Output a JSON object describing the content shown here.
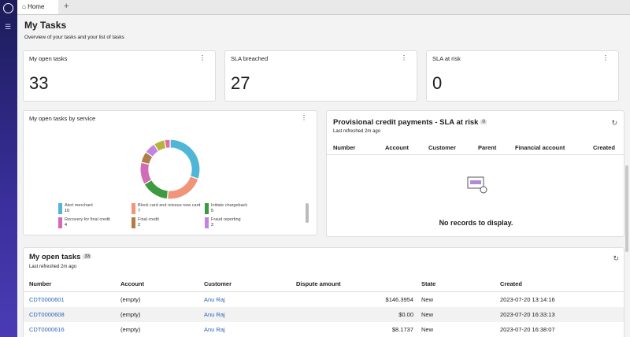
{
  "tab": {
    "label": "Home"
  },
  "header": {
    "title": "My Tasks",
    "subtitle": "Overview of your tasks and your list of tasks"
  },
  "stats": [
    {
      "label": "My open tasks",
      "value": 33
    },
    {
      "label": "SLA breached",
      "value": 27
    },
    {
      "label": "SLA at risk",
      "value": 0
    }
  ],
  "service_chart": {
    "type": "donut",
    "title": "My open tasks by service",
    "items": [
      {
        "label": "Alert merchant",
        "value": 10,
        "color": "#4fb6d8"
      },
      {
        "label": "Block card and reissue new card",
        "value": 7,
        "color": "#f0957a"
      },
      {
        "label": "Initiate chargeback",
        "value": 5,
        "color": "#3f9a3f"
      },
      {
        "label": "Recovery for final credit",
        "value": 4,
        "color": "#d16bb5"
      },
      {
        "label": "Final credit",
        "value": 2,
        "color": "#b07d46"
      },
      {
        "label": "Fraud reporting",
        "value": 2,
        "color": "#c184e0"
      },
      {
        "label": null,
        "value": 2,
        "color": "#b6b43a"
      },
      {
        "label": null,
        "value": 1,
        "color": "#e56aa0"
      }
    ]
  },
  "provisional": {
    "title": "Provisional credit payments - SLA at risk",
    "count": 0,
    "refreshed": "Last refreshed 2m ago",
    "columns": [
      "Number",
      "Account",
      "Customer",
      "Parent",
      "Financial account",
      "Created"
    ],
    "empty": "No records to display."
  },
  "tasks": {
    "title": "My open tasks",
    "count": 33,
    "refreshed": "Last refreshed 2m ago",
    "columns": [
      "Number",
      "Account",
      "Customer",
      "Dispute amount",
      "State",
      "Created"
    ],
    "rows": [
      [
        "CDT0000601",
        "(empty)",
        "Anu Raj",
        "$146.3954",
        "New",
        "2023-07-20 13:14:16"
      ],
      [
        "CDT0000608",
        "(empty)",
        "Anu Raj",
        "$0.00",
        "New",
        "2023-07-20 16:33:13"
      ],
      [
        "CDT0000616",
        "(empty)",
        "Anu Raj",
        "$8.1737",
        "New",
        "2023-07-20 16:38:07"
      ]
    ]
  }
}
